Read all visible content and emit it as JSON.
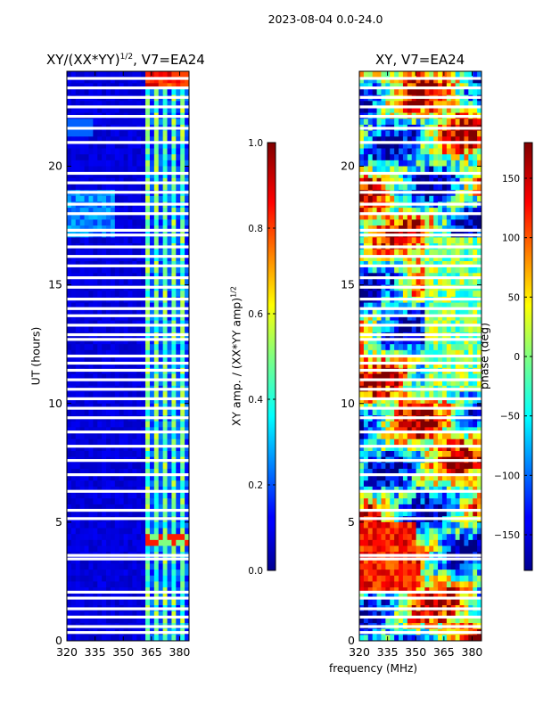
{
  "figure_title": "2023-08-04 0.0-24.0",
  "chart_data": [
    {
      "type": "heatmap",
      "title_prefix": "XY/(XX*YY)",
      "title_exponent": "1/2",
      "title_suffix": ", V7=EA24",
      "xlabel": "",
      "ylabel": "UT (hours)",
      "x_range": [
        320,
        385
      ],
      "y_range": [
        0,
        24
      ],
      "x_ticks": [
        "320",
        "335",
        "350",
        "365",
        "380"
      ],
      "y_ticks": [
        "0",
        "5",
        "10",
        "15",
        "20"
      ],
      "colormap": "jet",
      "colorbar": {
        "label_prefix": "XY amp. / (XX*YY amp)",
        "label_exponent": "1/2",
        "range": [
          0.0,
          1.0
        ],
        "ticks": [
          "0.0",
          "0.2",
          "0.4",
          "0.6",
          "0.8",
          "1.0"
        ]
      },
      "flagged_rows_ut": [
        0.35,
        0.6,
        1.0,
        1.35,
        1.8,
        2.05,
        3.45,
        3.6,
        5.15,
        5.5,
        6.3,
        7.0,
        7.6,
        8.2,
        8.8,
        9.4,
        9.8,
        10.2,
        10.6,
        11.0,
        11.4,
        11.7,
        12.0,
        12.7,
        12.9,
        13.3,
        13.7,
        14.0,
        14.4,
        14.9,
        15.3,
        15.8,
        16.2,
        16.6,
        17.1,
        17.3,
        18.0,
        18.4,
        18.9,
        19.3,
        19.7,
        21.0,
        21.6,
        22.1,
        22.5,
        22.9,
        23.3,
        23.7
      ],
      "colors": {
        "low": "#00008f",
        "high": "#800000"
      }
    },
    {
      "type": "heatmap",
      "title": "XY, V7=EA24",
      "xlabel": "frequency (MHz)",
      "ylabel": "",
      "x_range": [
        320,
        385
      ],
      "y_range": [
        0,
        24
      ],
      "x_ticks": [
        "320",
        "335",
        "350",
        "365",
        "380"
      ],
      "y_ticks": [
        "0",
        "5",
        "10",
        "15",
        "20"
      ],
      "colormap": "jet",
      "colorbar": {
        "label": "phase (deg)",
        "range": [
          -180,
          180
        ],
        "ticks": [
          "−150",
          "−100",
          "−50",
          "0",
          "50",
          "100",
          "150"
        ],
        "tick_values": [
          -150,
          -100,
          -50,
          0,
          50,
          100,
          150
        ]
      },
      "flagged_rows_ut": [
        0.35,
        0.6,
        1.0,
        1.35,
        1.8,
        2.05,
        3.45,
        3.6,
        5.15,
        5.5,
        6.3,
        7.0,
        7.6,
        8.2,
        8.8,
        9.4,
        9.8,
        10.2,
        10.6,
        11.0,
        11.4,
        11.7,
        12.0,
        12.7,
        12.9,
        13.3,
        13.7,
        14.0,
        14.4,
        14.9,
        15.3,
        15.8,
        16.2,
        16.6,
        17.1,
        17.3,
        18.0,
        18.4,
        18.9,
        19.3,
        19.7,
        21.0,
        21.6,
        22.1,
        22.5,
        22.9,
        23.3,
        23.7
      ]
    }
  ]
}
